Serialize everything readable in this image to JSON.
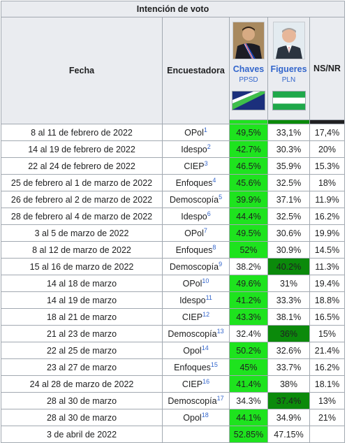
{
  "table": {
    "title": "Intención de voto",
    "col_fecha": "Fecha",
    "col_encuestadora": "Encuestadora",
    "col_nsnr": "NS/NR",
    "candidates": [
      {
        "name": "Chaves",
        "party": "PPSD",
        "bar_color": "#1ee31e"
      },
      {
        "name": "Figueres",
        "party": "PLN",
        "bar_color": "#0b8a0b"
      }
    ],
    "nsnr_bar_color": "#202122",
    "highlight_light": "#1ee31e",
    "highlight_dark": "#0b8a0b",
    "rows": [
      {
        "fecha": "8 al 11 de febrero de 2022",
        "enc": "OPol",
        "ref": "1",
        "chaves": "49,5%",
        "figueres": "33,1%",
        "nsnr": "17,4%",
        "win": "chaves"
      },
      {
        "fecha": "14 al 19 de febrero de 2022",
        "enc": "Idespo",
        "ref": "2",
        "chaves": "42.7%",
        "figueres": "30.3%",
        "nsnr": "20%",
        "win": "chaves"
      },
      {
        "fecha": "22 al 24 de febrero de 2022",
        "enc": "CIEP",
        "ref": "3",
        "chaves": "46.5%",
        "figueres": "35.9%",
        "nsnr": "15.3%",
        "win": "chaves"
      },
      {
        "fecha": "25 de febrero al 1 de marzo de 2022",
        "enc": "Enfoques",
        "ref": "4",
        "chaves": "45.6%",
        "figueres": "32.5%",
        "nsnr": "18%",
        "win": "chaves"
      },
      {
        "fecha": "26 de febrero al 2 de marzo de 2022",
        "enc": "Demoscopía",
        "ref": "5",
        "chaves": "39.9%",
        "figueres": "37.1%",
        "nsnr": "11.9%",
        "win": "chaves"
      },
      {
        "fecha": "28 de febrero al 4 de marzo de 2022",
        "enc": "Idespo",
        "ref": "6",
        "chaves": "44.4%",
        "figueres": "32.5%",
        "nsnr": "16.2%",
        "win": "chaves"
      },
      {
        "fecha": "3 al 5 de marzo de 2022",
        "enc": "OPol",
        "ref": "7",
        "chaves": "49.5%",
        "figueres": "30.6%",
        "nsnr": "19.9%",
        "win": "chaves"
      },
      {
        "fecha": "8 al 12 de marzo de 2022",
        "enc": "Enfoques",
        "ref": "8",
        "chaves": "52%",
        "figueres": "30.9%",
        "nsnr": "14.5%",
        "win": "chaves"
      },
      {
        "fecha": "15 al 16 de marzo de 2022",
        "enc": "Demoscopía",
        "ref": "9",
        "chaves": "38.2%",
        "figueres": "40.2%",
        "nsnr": "11.3%",
        "win": "figueres"
      },
      {
        "fecha": "14 al 18 de marzo",
        "enc": "OPol",
        "ref": "10",
        "chaves": "49.6%",
        "figueres": "31%",
        "nsnr": "19.4%",
        "win": "chaves"
      },
      {
        "fecha": "14 al 19 de marzo",
        "enc": "Idespo",
        "ref": "11",
        "chaves": "41.2%",
        "figueres": "33.3%",
        "nsnr": "18.8%",
        "win": "chaves"
      },
      {
        "fecha": "18 al 21 de marzo",
        "enc": "CIEP",
        "ref": "12",
        "chaves": "43.3%",
        "figueres": "38.1%",
        "nsnr": "16.5%",
        "win": "chaves"
      },
      {
        "fecha": "21 al 23 de marzo",
        "enc": "Demoscopía",
        "ref": "13",
        "chaves": "32.4%",
        "figueres": "36%",
        "nsnr": "15%",
        "win": "figueres"
      },
      {
        "fecha": "22 al 25 de marzo",
        "enc": "Opol",
        "ref": "14",
        "chaves": "50.2%",
        "figueres": "32.6%",
        "nsnr": "21.4%",
        "win": "chaves"
      },
      {
        "fecha": "23 al 27 de marzo",
        "enc": "Enfoques",
        "ref": "15",
        "chaves": "45%",
        "figueres": "33.7%",
        "nsnr": "16.2%",
        "win": "chaves"
      },
      {
        "fecha": "24 al 28 de marzo de 2022",
        "enc": "CIEP",
        "ref": "16",
        "chaves": "41.4%",
        "figueres": "38%",
        "nsnr": "18.1%",
        "win": "chaves"
      },
      {
        "fecha": "28 al 30 de marzo",
        "enc": "Demoscopía",
        "ref": "17",
        "chaves": "34.3%",
        "figueres": "37.4%",
        "nsnr": "13%",
        "win": "figueres"
      },
      {
        "fecha": "28 al 30 de marzo",
        "enc": "Opol",
        "ref": "18",
        "chaves": "44.1%",
        "figueres": "34.9%",
        "nsnr": "21%",
        "win": "chaves"
      },
      {
        "fecha": "3 de abril de 2022",
        "enc": "",
        "ref": "",
        "chaves": "52.85%",
        "figueres": "47.15%",
        "nsnr": "",
        "win": "chaves"
      }
    ]
  }
}
